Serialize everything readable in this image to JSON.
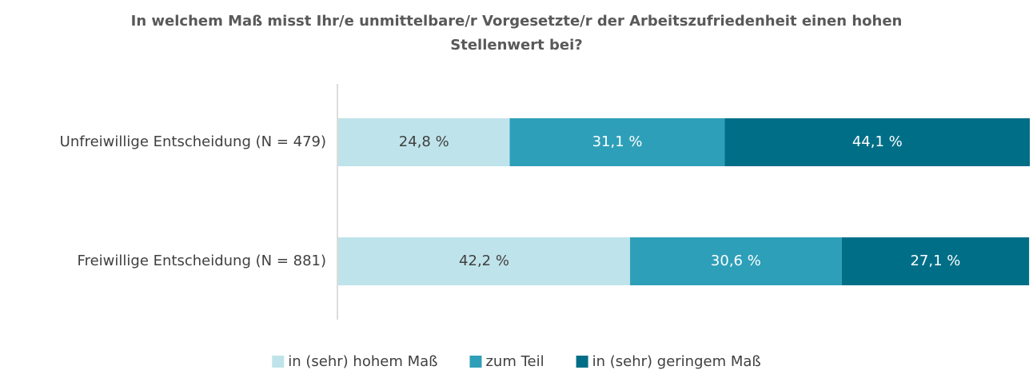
{
  "chart_data": {
    "type": "stacked_barh",
    "title": "In welchem Maß misst Ihr/e unmittelbare/r Vorgesetzte/r der Arbeitszufriedenheit einen hohen Stellenwert bei?",
    "categories": [
      "Unfreiwillige Entscheidung (N = 479)",
      "Freiwillige Entscheidung (N = 881)"
    ],
    "series": [
      {
        "name": "in (sehr) hohem Maß",
        "color": "#bfe3ea",
        "values": [
          24.8,
          42.2
        ],
        "value_labels": [
          "24,8 %",
          "42,2 %"
        ]
      },
      {
        "name": "zum Teil",
        "color": "#2e9fb8",
        "values": [
          31.1,
          30.6
        ],
        "value_labels": [
          "31,1 %",
          "30,6 %"
        ]
      },
      {
        "name": "in (sehr) geringem Maß",
        "color": "#006e87",
        "values": [
          44.1,
          27.1
        ],
        "value_labels": [
          "44,1 %",
          "27,1 %"
        ]
      }
    ],
    "xlim": [
      0,
      100
    ],
    "legend": "bottom"
  }
}
